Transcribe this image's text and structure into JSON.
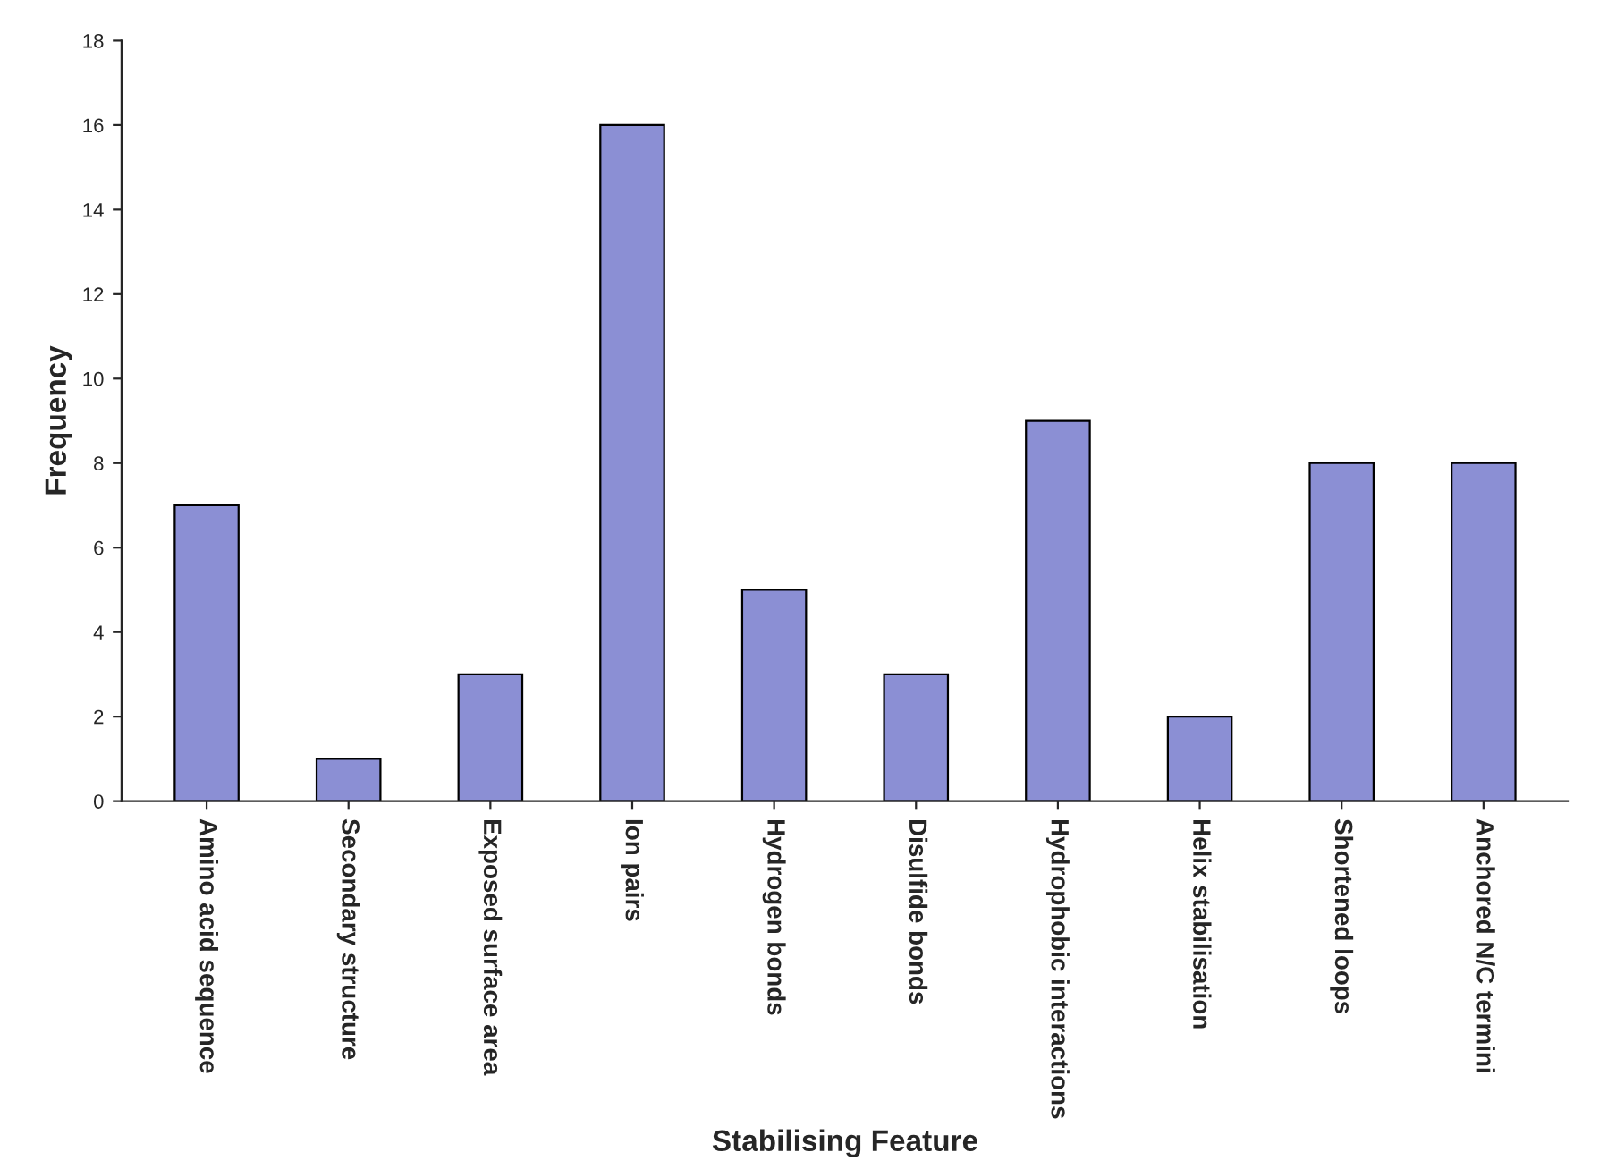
{
  "chart_data": {
    "type": "bar",
    "xlabel": "Stabilising Feature",
    "ylabel": "Frequency",
    "categories": [
      "Amino acid sequence",
      "Secondary structure",
      "Exposed surface area",
      "Ion pairs",
      "Hydrogen bonds",
      "Disulfide bonds",
      "Hydrophobic interactions",
      "Helix stabilisation",
      "Shortened loops",
      "Anchored N/C termini"
    ],
    "values": [
      7,
      1,
      3,
      16,
      5,
      3,
      9,
      2,
      8,
      8
    ],
    "color": "#8b8fd4",
    "ylim": [
      0,
      18
    ],
    "yticks": [
      0,
      2,
      4,
      6,
      8,
      10,
      12,
      14,
      16,
      18
    ],
    "grid": false,
    "legend": false
  }
}
